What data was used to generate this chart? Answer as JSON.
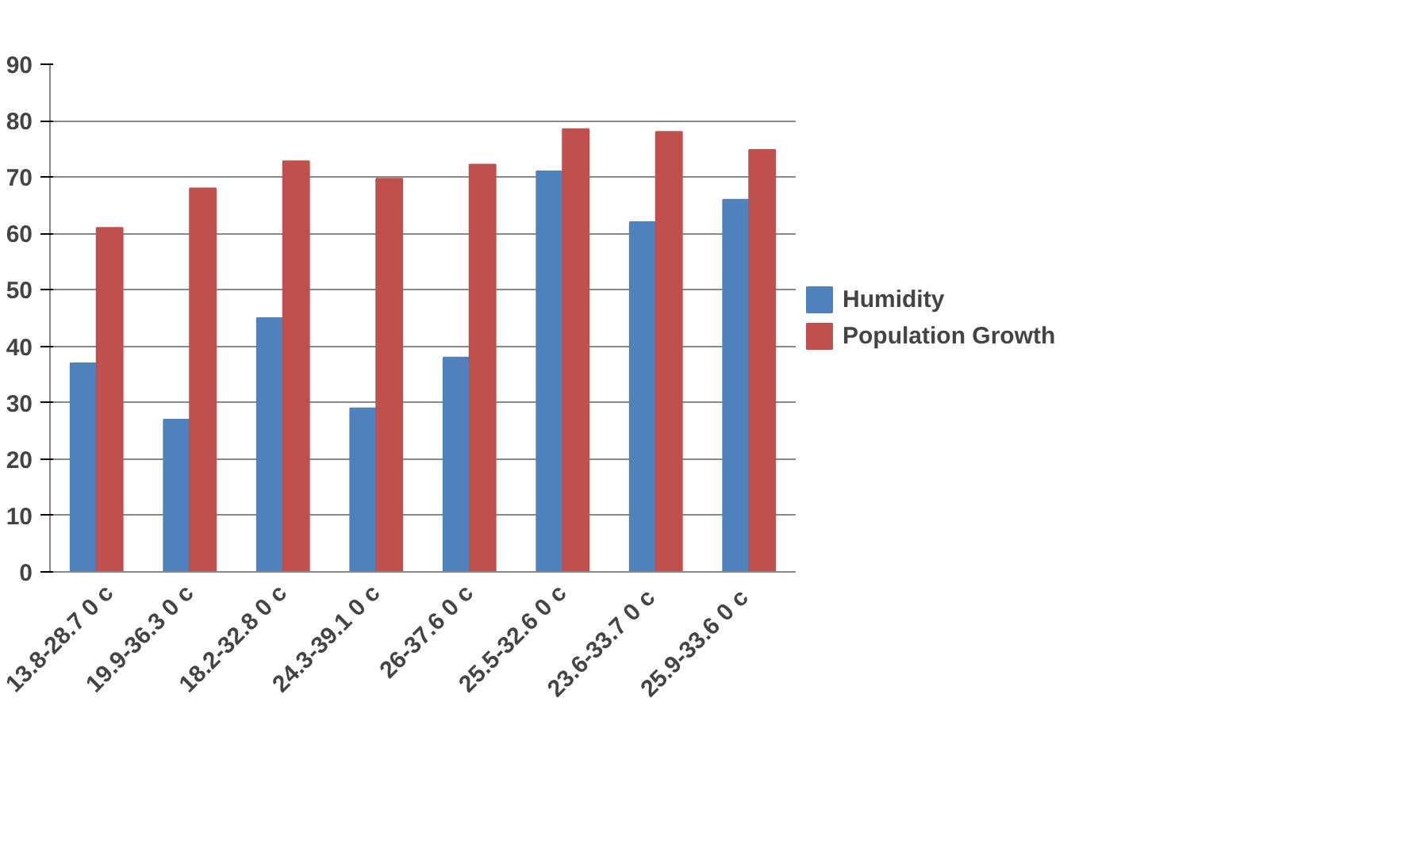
{
  "chart_data": {
    "type": "bar",
    "categories": [
      "13.8-28.7 0 c",
      "19.9-36.3 0 c",
      "18.2-32.8 0 c",
      "24.3-39.1 0 c",
      "26-37.6 0 c",
      "25.5-32.6 0 c",
      "23.6-33.7  0 c",
      "25.9-33.6  0 c"
    ],
    "series": [
      {
        "name": "Humidity",
        "color": "#4f81bd",
        "values": [
          37,
          27,
          45,
          29,
          38,
          71,
          62,
          66
        ]
      },
      {
        "name": "Population Growth",
        "color": "#c0504d",
        "values": [
          61,
          68,
          72.8,
          69.7,
          72.2,
          78.5,
          78,
          74.8
        ]
      }
    ],
    "ylim": [
      0,
      90
    ],
    "yticks": [
      0,
      10,
      20,
      30,
      40,
      50,
      60,
      70,
      80,
      90
    ],
    "grid": "y",
    "legend": "right"
  }
}
